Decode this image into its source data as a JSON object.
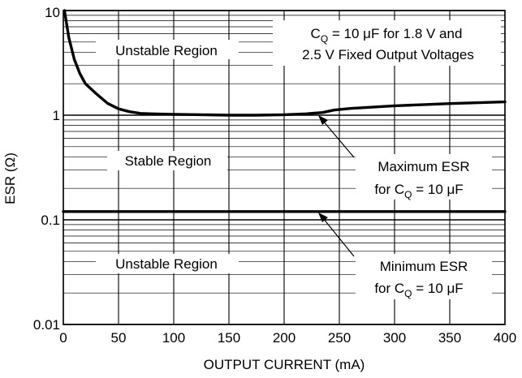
{
  "chart_data": {
    "type": "line",
    "xlabel": "OUTPUT CURRENT (mA)",
    "ylabel": "ESR (Ω)",
    "xlim": [
      0,
      400
    ],
    "ylim": [
      0.01,
      10
    ],
    "y_scale": "log",
    "grid": true,
    "x_ticks": [
      0,
      50,
      100,
      150,
      200,
      250,
      300,
      350,
      400
    ],
    "x_tick_labels": [
      "0",
      "50",
      "100",
      "150",
      "200",
      "250",
      "300",
      "350",
      "400"
    ],
    "y_ticks": [
      0.01,
      0.1,
      1,
      10
    ],
    "y_tick_labels": [
      "0.01",
      "0.1",
      "1",
      "10"
    ],
    "series": [
      {
        "id": "max_esr",
        "x": [
          1,
          5,
          10,
          15,
          20,
          30,
          40,
          50,
          60,
          70,
          80,
          100,
          125,
          150,
          175,
          200,
          220,
          235,
          245,
          260,
          300,
          350,
          400
        ],
        "y": [
          10,
          5.5,
          3.4,
          2.5,
          2.0,
          1.6,
          1.3,
          1.15,
          1.08,
          1.04,
          1.03,
          1.02,
          1.01,
          1.0,
          1.0,
          1.01,
          1.03,
          1.06,
          1.12,
          1.16,
          1.23,
          1.29,
          1.34
        ]
      },
      {
        "id": "min_esr",
        "x": [
          0,
          400
        ],
        "y": [
          0.12,
          0.12
        ]
      }
    ],
    "annotations": {
      "cq_note_line1": "C",
      "cq_note_sub": "Q",
      "cq_note_line1_rest": " = 10 μF for 1.8 V and",
      "cq_note_line2": "2.5 V Fixed Output Voltages",
      "unstable_upper": "Unstable Region",
      "stable": "Stable Region",
      "unstable_lower": "Unstable Region",
      "max_label_line1": "Maximum ESR",
      "max_label_line2_a": "for C",
      "max_label_line2_sub": "Q",
      "max_label_line2_b": " = 10 μF",
      "min_label_line1": "Minimum ESR",
      "min_label_line2_a": "for C",
      "min_label_line2_sub": "Q",
      "min_label_line2_b": " = 10 μF"
    }
  }
}
